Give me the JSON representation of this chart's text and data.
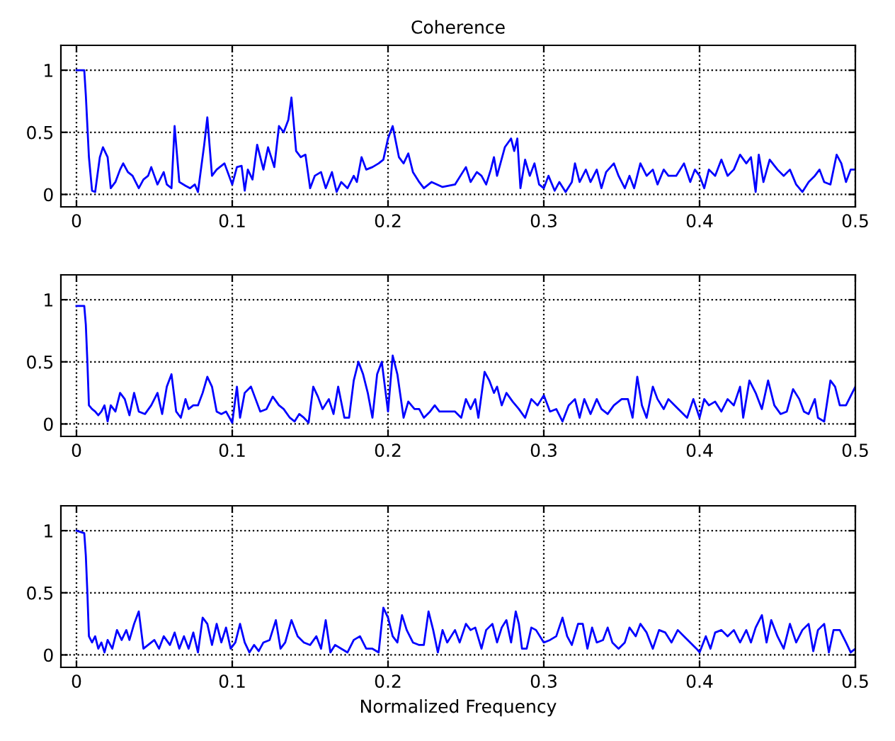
{
  "chart_data": [
    {
      "type": "line",
      "title": "Coherence",
      "xlim": [
        -0.01,
        0.5
      ],
      "ylim": [
        -0.1,
        1.2
      ],
      "xticks": [
        0,
        0.1,
        0.2,
        0.3,
        0.4,
        0.5
      ],
      "yticks": [
        0,
        0.5,
        1
      ],
      "grid": true,
      "marker": "none",
      "line_style": "solid",
      "series": [
        {
          "color": "#0000ff",
          "x": [
            0,
            0.005,
            0.006,
            0.008,
            0.01,
            0.012,
            0.015,
            0.017,
            0.02,
            0.022,
            0.025,
            0.028,
            0.03,
            0.033,
            0.036,
            0.04,
            0.043,
            0.046,
            0.048,
            0.05,
            0.052,
            0.056,
            0.058,
            0.061,
            0.063,
            0.066,
            0.07,
            0.073,
            0.076,
            0.078,
            0.082,
            0.084,
            0.087,
            0.09,
            0.095,
            0.1,
            0.103,
            0.106,
            0.108,
            0.11,
            0.113,
            0.116,
            0.12,
            0.123,
            0.127,
            0.13,
            0.133,
            0.136,
            0.138,
            0.141,
            0.144,
            0.147,
            0.15,
            0.153,
            0.157,
            0.16,
            0.164,
            0.167,
            0.17,
            0.174,
            0.178,
            0.18,
            0.183,
            0.186,
            0.19,
            0.194,
            0.197,
            0.2,
            0.203,
            0.207,
            0.21,
            0.213,
            0.216,
            0.22,
            0.223,
            0.228,
            0.235,
            0.243,
            0.25,
            0.253,
            0.257,
            0.26,
            0.263,
            0.266,
            0.268,
            0.27,
            0.275,
            0.279,
            0.281,
            0.283,
            0.285,
            0.288,
            0.291,
            0.294,
            0.297,
            0.3,
            0.303,
            0.307,
            0.31,
            0.314,
            0.318,
            0.32,
            0.323,
            0.327,
            0.33,
            0.334,
            0.337,
            0.34,
            0.345,
            0.348,
            0.352,
            0.355,
            0.358,
            0.362,
            0.366,
            0.37,
            0.373,
            0.377,
            0.38,
            0.385,
            0.39,
            0.394,
            0.397,
            0.4,
            0.403,
            0.406,
            0.41,
            0.414,
            0.418,
            0.422,
            0.426,
            0.43,
            0.433,
            0.436,
            0.438,
            0.441,
            0.445,
            0.45,
            0.454,
            0.458,
            0.462,
            0.466,
            0.47,
            0.474,
            0.477,
            0.48,
            0.484,
            0.488,
            0.491,
            0.494,
            0.497,
            0.5
          ],
          "values": [
            1.0,
            1.0,
            0.8,
            0.3,
            0.03,
            0.02,
            0.3,
            0.38,
            0.3,
            0.05,
            0.1,
            0.2,
            0.25,
            0.18,
            0.15,
            0.05,
            0.12,
            0.15,
            0.22,
            0.15,
            0.08,
            0.18,
            0.08,
            0.05,
            0.55,
            0.1,
            0.07,
            0.05,
            0.08,
            0.02,
            0.4,
            0.62,
            0.15,
            0.2,
            0.25,
            0.08,
            0.22,
            0.23,
            0.03,
            0.2,
            0.12,
            0.4,
            0.2,
            0.38,
            0.22,
            0.55,
            0.5,
            0.6,
            0.78,
            0.35,
            0.3,
            0.32,
            0.05,
            0.15,
            0.18,
            0.05,
            0.18,
            0.02,
            0.1,
            0.05,
            0.15,
            0.1,
            0.3,
            0.2,
            0.22,
            0.25,
            0.28,
            0.45,
            0.55,
            0.3,
            0.25,
            0.33,
            0.18,
            0.1,
            0.05,
            0.1,
            0.06,
            0.08,
            0.22,
            0.1,
            0.18,
            0.15,
            0.08,
            0.2,
            0.3,
            0.15,
            0.38,
            0.45,
            0.35,
            0.45,
            0.05,
            0.28,
            0.15,
            0.25,
            0.08,
            0.05,
            0.15,
            0.03,
            0.1,
            0.02,
            0.1,
            0.25,
            0.1,
            0.2,
            0.1,
            0.2,
            0.05,
            0.18,
            0.25,
            0.15,
            0.05,
            0.15,
            0.05,
            0.25,
            0.15,
            0.2,
            0.08,
            0.2,
            0.15,
            0.15,
            0.25,
            0.1,
            0.2,
            0.15,
            0.05,
            0.2,
            0.15,
            0.28,
            0.15,
            0.2,
            0.32,
            0.25,
            0.3,
            0.02,
            0.32,
            0.1,
            0.28,
            0.2,
            0.15,
            0.2,
            0.08,
            0.02,
            0.1,
            0.15,
            0.2,
            0.1,
            0.08,
            0.32,
            0.25,
            0.1,
            0.2,
            0.2
          ]
        }
      ]
    },
    {
      "type": "line",
      "xlim": [
        -0.01,
        0.5
      ],
      "ylim": [
        -0.1,
        1.2
      ],
      "xticks": [
        0,
        0.1,
        0.2,
        0.3,
        0.4,
        0.5
      ],
      "yticks": [
        0,
        0.5,
        1
      ],
      "grid": true,
      "marker": "none",
      "line_style": "solid",
      "series": [
        {
          "color": "#0000ff",
          "x": [
            0,
            0.005,
            0.006,
            0.007,
            0.008,
            0.01,
            0.012,
            0.014,
            0.016,
            0.018,
            0.02,
            0.022,
            0.025,
            0.028,
            0.031,
            0.034,
            0.037,
            0.04,
            0.044,
            0.048,
            0.052,
            0.055,
            0.058,
            0.061,
            0.064,
            0.067,
            0.07,
            0.072,
            0.075,
            0.078,
            0.081,
            0.084,
            0.087,
            0.09,
            0.093,
            0.096,
            0.1,
            0.103,
            0.105,
            0.108,
            0.112,
            0.115,
            0.118,
            0.122,
            0.126,
            0.13,
            0.133,
            0.137,
            0.14,
            0.143,
            0.146,
            0.149,
            0.152,
            0.155,
            0.158,
            0.162,
            0.165,
            0.168,
            0.172,
            0.175,
            0.178,
            0.181,
            0.184,
            0.187,
            0.19,
            0.193,
            0.196,
            0.198,
            0.2,
            0.203,
            0.206,
            0.21,
            0.213,
            0.217,
            0.22,
            0.223,
            0.227,
            0.23,
            0.233,
            0.237,
            0.243,
            0.247,
            0.25,
            0.253,
            0.256,
            0.258,
            0.262,
            0.265,
            0.268,
            0.27,
            0.273,
            0.276,
            0.28,
            0.284,
            0.288,
            0.292,
            0.296,
            0.3,
            0.304,
            0.308,
            0.312,
            0.316,
            0.32,
            0.323,
            0.326,
            0.33,
            0.334,
            0.337,
            0.341,
            0.345,
            0.35,
            0.354,
            0.357,
            0.36,
            0.363,
            0.366,
            0.37,
            0.373,
            0.377,
            0.38,
            0.384,
            0.388,
            0.392,
            0.396,
            0.4,
            0.403,
            0.406,
            0.41,
            0.414,
            0.418,
            0.422,
            0.426,
            0.428,
            0.432,
            0.436,
            0.44,
            0.444,
            0.448,
            0.452,
            0.456,
            0.46,
            0.464,
            0.467,
            0.47,
            0.474,
            0.476,
            0.48,
            0.484,
            0.487,
            0.49,
            0.494,
            0.5
          ],
          "values": [
            0.95,
            0.95,
            0.8,
            0.5,
            0.15,
            0.12,
            0.1,
            0.07,
            0.1,
            0.15,
            0.02,
            0.15,
            0.1,
            0.25,
            0.2,
            0.07,
            0.25,
            0.1,
            0.08,
            0.15,
            0.25,
            0.08,
            0.3,
            0.4,
            0.1,
            0.05,
            0.2,
            0.12,
            0.15,
            0.15,
            0.25,
            0.38,
            0.3,
            0.1,
            0.08,
            0.1,
            0.01,
            0.3,
            0.05,
            0.25,
            0.3,
            0.2,
            0.1,
            0.12,
            0.22,
            0.15,
            0.12,
            0.05,
            0.02,
            0.08,
            0.05,
            0.01,
            0.3,
            0.22,
            0.12,
            0.2,
            0.08,
            0.3,
            0.05,
            0.05,
            0.35,
            0.5,
            0.4,
            0.25,
            0.05,
            0.4,
            0.5,
            0.3,
            0.1,
            0.55,
            0.4,
            0.05,
            0.18,
            0.12,
            0.12,
            0.05,
            0.1,
            0.15,
            0.1,
            0.1,
            0.1,
            0.05,
            0.2,
            0.12,
            0.2,
            0.05,
            0.42,
            0.35,
            0.25,
            0.3,
            0.15,
            0.25,
            0.18,
            0.12,
            0.05,
            0.2,
            0.15,
            0.23,
            0.1,
            0.12,
            0.02,
            0.15,
            0.2,
            0.05,
            0.2,
            0.08,
            0.2,
            0.12,
            0.08,
            0.15,
            0.2,
            0.2,
            0.05,
            0.38,
            0.15,
            0.05,
            0.3,
            0.2,
            0.12,
            0.2,
            0.15,
            0.1,
            0.05,
            0.2,
            0.05,
            0.2,
            0.15,
            0.18,
            0.1,
            0.2,
            0.15,
            0.3,
            0.05,
            0.35,
            0.25,
            0.12,
            0.35,
            0.15,
            0.08,
            0.1,
            0.28,
            0.2,
            0.1,
            0.08,
            0.2,
            0.05,
            0.02,
            0.35,
            0.3,
            0.15,
            0.15,
            0.3
          ]
        }
      ]
    },
    {
      "type": "line",
      "xlabel": "Normalized Frequency",
      "xlim": [
        -0.01,
        0.5
      ],
      "ylim": [
        -0.1,
        1.2
      ],
      "xticks": [
        0,
        0.1,
        0.2,
        0.3,
        0.4,
        0.5
      ],
      "yticks": [
        0,
        0.5,
        1
      ],
      "grid": true,
      "marker": "none",
      "line_style": "solid",
      "series": [
        {
          "color": "#0000ff",
          "x": [
            0,
            0.005,
            0.006,
            0.007,
            0.008,
            0.01,
            0.012,
            0.014,
            0.016,
            0.018,
            0.02,
            0.023,
            0.026,
            0.029,
            0.032,
            0.034,
            0.037,
            0.04,
            0.043,
            0.046,
            0.05,
            0.053,
            0.056,
            0.06,
            0.063,
            0.066,
            0.069,
            0.072,
            0.075,
            0.078,
            0.081,
            0.084,
            0.087,
            0.09,
            0.093,
            0.096,
            0.099,
            0.102,
            0.105,
            0.108,
            0.111,
            0.114,
            0.117,
            0.12,
            0.124,
            0.128,
            0.131,
            0.134,
            0.138,
            0.142,
            0.146,
            0.15,
            0.154,
            0.157,
            0.16,
            0.163,
            0.166,
            0.17,
            0.174,
            0.178,
            0.182,
            0.186,
            0.19,
            0.194,
            0.197,
            0.2,
            0.203,
            0.206,
            0.209,
            0.212,
            0.216,
            0.22,
            0.223,
            0.226,
            0.229,
            0.232,
            0.235,
            0.238,
            0.243,
            0.246,
            0.25,
            0.253,
            0.256,
            0.26,
            0.263,
            0.267,
            0.27,
            0.273,
            0.276,
            0.279,
            0.282,
            0.284,
            0.286,
            0.289,
            0.292,
            0.295,
            0.3,
            0.304,
            0.308,
            0.312,
            0.315,
            0.318,
            0.322,
            0.325,
            0.328,
            0.331,
            0.334,
            0.338,
            0.341,
            0.344,
            0.348,
            0.352,
            0.355,
            0.359,
            0.362,
            0.366,
            0.37,
            0.374,
            0.378,
            0.382,
            0.386,
            0.39,
            0.394,
            0.398,
            0.4,
            0.404,
            0.407,
            0.41,
            0.414,
            0.418,
            0.422,
            0.426,
            0.43,
            0.433,
            0.436,
            0.44,
            0.443,
            0.446,
            0.45,
            0.454,
            0.458,
            0.462,
            0.466,
            0.47,
            0.473,
            0.476,
            0.48,
            0.483,
            0.486,
            0.49,
            0.494,
            0.497,
            0.5
          ],
          "values": [
            1.0,
            0.98,
            0.8,
            0.5,
            0.15,
            0.1,
            0.15,
            0.05,
            0.1,
            0.02,
            0.12,
            0.05,
            0.2,
            0.12,
            0.2,
            0.12,
            0.25,
            0.35,
            0.05,
            0.08,
            0.12,
            0.05,
            0.15,
            0.08,
            0.18,
            0.05,
            0.15,
            0.05,
            0.18,
            0.02,
            0.3,
            0.25,
            0.08,
            0.25,
            0.1,
            0.22,
            0.05,
            0.1,
            0.25,
            0.1,
            0.02,
            0.08,
            0.03,
            0.1,
            0.12,
            0.28,
            0.05,
            0.1,
            0.28,
            0.15,
            0.1,
            0.08,
            0.15,
            0.05,
            0.28,
            0.02,
            0.08,
            0.05,
            0.02,
            0.12,
            0.15,
            0.05,
            0.05,
            0.02,
            0.38,
            0.3,
            0.15,
            0.1,
            0.32,
            0.2,
            0.1,
            0.08,
            0.08,
            0.35,
            0.2,
            0.02,
            0.2,
            0.1,
            0.2,
            0.1,
            0.25,
            0.2,
            0.22,
            0.05,
            0.2,
            0.25,
            0.1,
            0.22,
            0.28,
            0.1,
            0.35,
            0.25,
            0.05,
            0.05,
            0.22,
            0.2,
            0.1,
            0.12,
            0.15,
            0.3,
            0.15,
            0.08,
            0.25,
            0.25,
            0.05,
            0.22,
            0.1,
            0.12,
            0.22,
            0.1,
            0.05,
            0.1,
            0.22,
            0.15,
            0.25,
            0.18,
            0.05,
            0.2,
            0.18,
            0.1,
            0.2,
            0.15,
            0.1,
            0.05,
            0.02,
            0.15,
            0.05,
            0.18,
            0.2,
            0.15,
            0.2,
            0.1,
            0.2,
            0.1,
            0.22,
            0.32,
            0.1,
            0.28,
            0.15,
            0.05,
            0.25,
            0.1,
            0.2,
            0.25,
            0.03,
            0.2,
            0.25,
            0.02,
            0.2,
            0.2,
            0.1,
            0.02,
            0.05
          ]
        }
      ]
    }
  ]
}
